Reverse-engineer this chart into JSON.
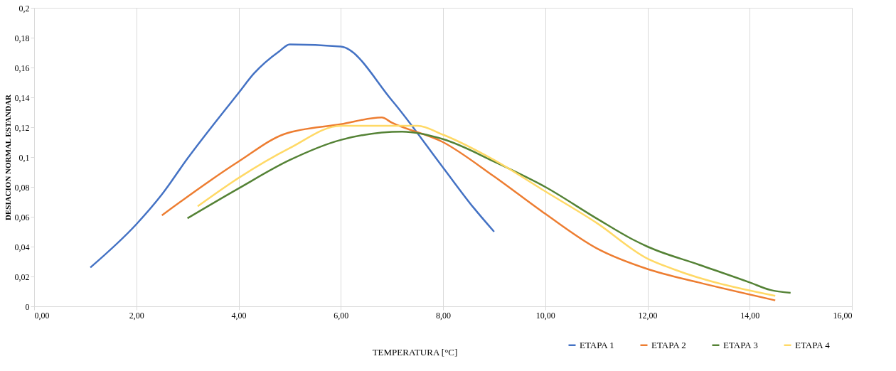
{
  "chart_data": {
    "type": "line",
    "xlabel": "TEMPERATURA [°C]",
    "ylabel": "DESIACION NORMAL ESTANDAR",
    "xlim": [
      0,
      16
    ],
    "ylim": [
      0,
      0.2
    ],
    "xticks": [
      {
        "value": 0,
        "label": "0,00"
      },
      {
        "value": 2,
        "label": "2,00"
      },
      {
        "value": 4,
        "label": "4,00"
      },
      {
        "value": 6,
        "label": "6,00"
      },
      {
        "value": 8,
        "label": "8,00"
      },
      {
        "value": 10,
        "label": "10,00"
      },
      {
        "value": 12,
        "label": "12,00"
      },
      {
        "value": 14,
        "label": "14,00"
      },
      {
        "value": 16,
        "label": "16,00"
      }
    ],
    "yticks": [
      0,
      {
        "value": 0.02,
        "label": "0,02"
      },
      {
        "value": 0.04,
        "label": "0,04"
      },
      {
        "value": 0.06,
        "label": "0,06"
      },
      {
        "value": 0.08,
        "label": "0,08"
      },
      {
        "value": 0.1,
        "label": "0,1"
      },
      {
        "value": 0.12,
        "label": "0,12"
      },
      {
        "value": 0.14,
        "label": "0,14"
      },
      {
        "value": 0.16,
        "label": "0,16"
      },
      {
        "value": 0.18,
        "label": "0,18"
      },
      {
        "value": 0.2,
        "label": "0,2"
      }
    ],
    "grid": "x",
    "legend": "bottom right",
    "marker": "none",
    "line_style": "solid",
    "series": [
      {
        "name": "ETAPA 1",
        "color": "#4472c4",
        "x": [
          1.1,
          2.0,
          2.5,
          3.0,
          4.0,
          4.3,
          4.8,
          5.0,
          6.0,
          7.0,
          8.0,
          8.6,
          9.0
        ],
        "values": [
          0.026,
          0.055,
          0.075,
          0.099,
          0.143,
          0.156,
          0.171,
          0.1755,
          0.174,
          0.138,
          0.093,
          0.066,
          0.05
        ]
      },
      {
        "name": "ETAPA 2",
        "color": "#ed7d31",
        "x": [
          2.5,
          4.0,
          4.9,
          6.0,
          6.8,
          7.0,
          8.0,
          9.0,
          10.0,
          11.0,
          12.0,
          13.0,
          14.5
        ],
        "values": [
          0.061,
          0.097,
          0.1155,
          0.122,
          0.1265,
          0.123,
          0.11,
          0.087,
          0.062,
          0.039,
          0.025,
          0.016,
          0.004
        ]
      },
      {
        "name": "ETAPA 3",
        "color": "#548235",
        "x": [
          3.0,
          4.0,
          5.0,
          6.0,
          7.2,
          8.0,
          9.0,
          10.0,
          11.0,
          11.7,
          12.0,
          13.0,
          14.0,
          14.4,
          14.8
        ],
        "values": [
          0.059,
          0.079,
          0.098,
          0.1115,
          0.117,
          0.112,
          0.097,
          0.08,
          0.059,
          0.045,
          0.04,
          0.028,
          0.016,
          0.011,
          0.009
        ]
      },
      {
        "name": "ETAPA 4",
        "color": "#ffd966",
        "x": [
          3.2,
          4.0,
          5.0,
          6.0,
          7.5,
          8.0,
          9.0,
          10.0,
          11.0,
          12.0,
          12.5,
          14.5
        ],
        "values": [
          0.067,
          0.086,
          0.106,
          0.121,
          0.121,
          0.115,
          0.098,
          0.077,
          0.056,
          0.032,
          0.025,
          0.007
        ]
      }
    ]
  }
}
